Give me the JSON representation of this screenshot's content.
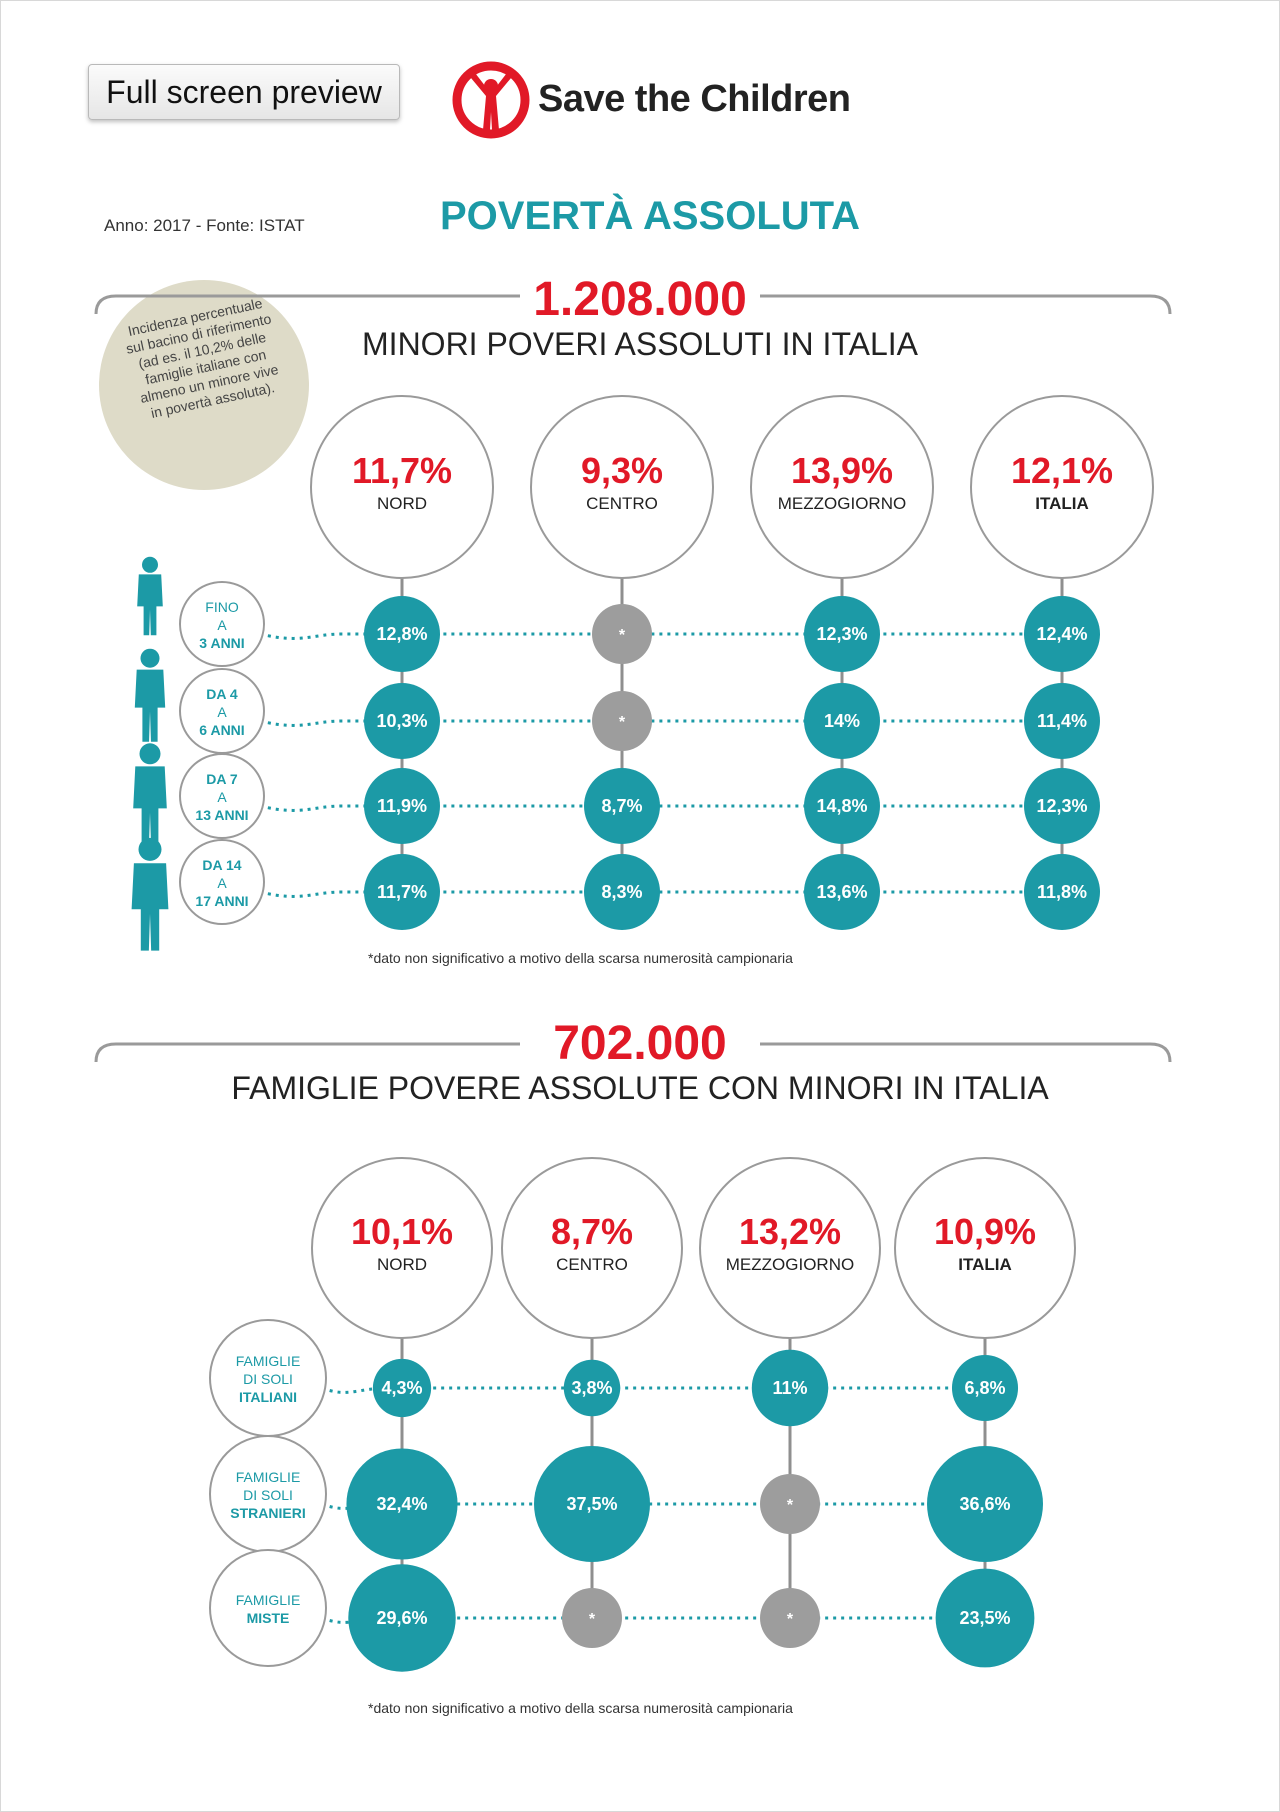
{
  "preview_button": {
    "label": "Full screen preview"
  },
  "brand": {
    "name": "Save the Children",
    "color": "#e11927"
  },
  "header": {
    "source": "Anno: 2017 - Fonte: ISTAT",
    "title": "POVERTÀ ASSOLUTA"
  },
  "colors": {
    "teal": "#1c9aa6",
    "grey": "#9d9d9d",
    "red": "#e11927",
    "line": "#8f8f8f"
  },
  "legend_note": "Incidenza percentuale sul bacino di riferimento (ad es. il 10,2% delle famiglie italiane con almeno un minore vive in povertà assoluta).",
  "chart_data": [
    {
      "type": "bubble-grid",
      "total": "1.208.000",
      "subtitle": "MINORI POVERI ASSOLUTI IN ITALIA",
      "regions": [
        {
          "name": "NORD",
          "value": "11,7%"
        },
        {
          "name": "CENTRO",
          "value": "9,3%"
        },
        {
          "name": "MEZZOGIORNO",
          "value": "13,9%"
        },
        {
          "name": "ITALIA",
          "value": "12,1%"
        }
      ],
      "rows": [
        {
          "label": [
            "FINO",
            "A",
            "3 ANNI"
          ],
          "values": [
            12.8,
            null,
            12.3,
            12.4
          ],
          "labels": [
            "12,8%",
            "*",
            "12,3%",
            "12,4%"
          ]
        },
        {
          "label": [
            "DA 4",
            "A",
            "6 ANNI"
          ],
          "values": [
            10.3,
            null,
            14,
            11.4
          ],
          "labels": [
            "10,3%",
            "*",
            "14%",
            "11,4%"
          ]
        },
        {
          "label": [
            "DA 7",
            "A",
            "13 ANNI"
          ],
          "values": [
            11.9,
            8.7,
            14.8,
            12.3
          ],
          "labels": [
            "11,9%",
            "8,7%",
            "14,8%",
            "12,3%"
          ]
        },
        {
          "label": [
            "DA 14",
            "A",
            "17 ANNI"
          ],
          "values": [
            11.7,
            8.3,
            13.6,
            11.8
          ],
          "labels": [
            "11,7%",
            "8,3%",
            "13,6%",
            "11,8%"
          ]
        }
      ],
      "footnote": "*dato non significativo a motivo della scarsa numerosità campionaria"
    },
    {
      "type": "bubble-grid",
      "total": "702.000",
      "subtitle": "FAMIGLIE POVERE ASSOLUTE CON MINORI IN ITALIA",
      "regions": [
        {
          "name": "NORD",
          "value": "10,1%"
        },
        {
          "name": "CENTRO",
          "value": "8,7%"
        },
        {
          "name": "MEZZOGIORNO",
          "value": "13,2%"
        },
        {
          "name": "ITALIA",
          "value": "10,9%"
        }
      ],
      "rows": [
        {
          "label": [
            "FAMIGLIE",
            "DI SOLI",
            "ITALIANI"
          ],
          "values": [
            4.3,
            3.8,
            11,
            6.8
          ],
          "labels": [
            "4,3%",
            "3,8%",
            "11%",
            "6,8%"
          ]
        },
        {
          "label": [
            "FAMIGLIE",
            "DI SOLI",
            "STRANIERI"
          ],
          "values": [
            32.4,
            37.5,
            null,
            36.6
          ],
          "labels": [
            "32,4%",
            "37,5%",
            "*",
            "36,6%"
          ]
        },
        {
          "label": [
            "FAMIGLIE",
            "MISTE"
          ],
          "values": [
            29.6,
            null,
            null,
            23.5
          ],
          "labels": [
            "29,6%",
            "*",
            "*",
            "23,5%"
          ]
        }
      ],
      "footnote": "*dato non significativo a motivo della scarsa numerosità campionaria"
    }
  ]
}
